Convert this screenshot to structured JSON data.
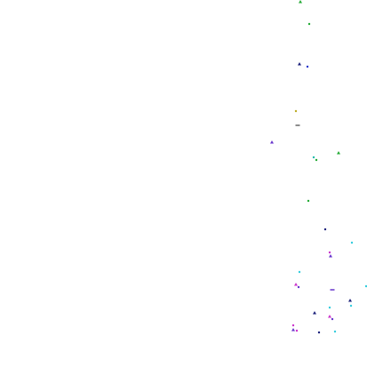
{
  "background": "#ffffff",
  "palette": {
    "green": "#22aa33",
    "teal": "#22bbaa",
    "blue": "#2233cc",
    "navy": "#1a1f7a",
    "purple": "#6633cc",
    "magenta": "#cc33cc",
    "cyan": "#33ccdd",
    "gray": "#666666",
    "yellow": "#bbaa22"
  }
}
